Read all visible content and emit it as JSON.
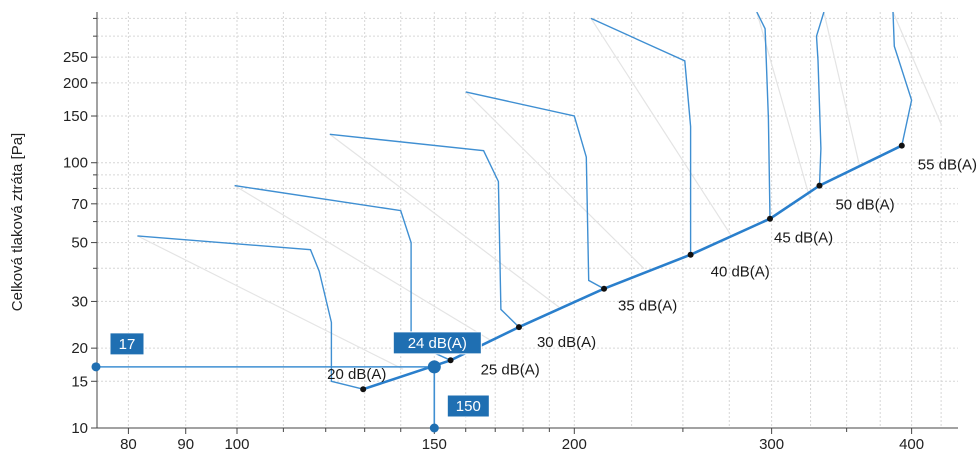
{
  "chart_data": {
    "type": "line",
    "ylabel": "Celková tlaková ztráta [Pa]",
    "xlabel": "",
    "x_scale": "log",
    "y_scale": "log",
    "xlim": [
      75,
      440
    ],
    "ylim": [
      10,
      370
    ],
    "x_ticks": [
      80,
      90,
      100,
      150,
      200,
      300,
      400
    ],
    "y_ticks": [
      10,
      15,
      20,
      30,
      50,
      70,
      100,
      150,
      200,
      250
    ],
    "grid": true,
    "colors": {
      "curve": "#3f8fd2",
      "operating_line": "#2a7fcc",
      "grid": "#d6d6d6",
      "badge": "#1f6fb2",
      "point": "#111111"
    },
    "noise_curves": [
      {
        "label": "20 dB(A)",
        "points": [
          [
            81.5,
            53
          ],
          [
            116.3,
            47
          ],
          [
            118.4,
            39
          ],
          [
            121.4,
            25
          ],
          [
            121.4,
            15
          ],
          [
            129.6,
            14
          ]
        ]
      },
      {
        "label": "25 dB(A)",
        "points": [
          [
            99.5,
            82
          ],
          [
            140,
            66
          ],
          [
            143,
            50
          ],
          [
            143,
            21
          ],
          [
            155.1,
            18
          ]
        ]
      },
      {
        "label": "30 dB(A)",
        "points": [
          [
            121,
            128
          ],
          [
            166,
            111
          ],
          [
            171.1,
            85
          ],
          [
            172,
            28
          ],
          [
            178.5,
            24
          ]
        ]
      },
      {
        "label": "35 dB(A)",
        "points": [
          [
            160,
            185
          ],
          [
            200,
            150
          ],
          [
            205,
            105
          ],
          [
            206,
            36
          ],
          [
            212.6,
            33.5
          ]
        ]
      },
      {
        "label": "40 dB(A)",
        "points": [
          [
            207,
            350
          ],
          [
            251,
            242
          ],
          [
            254,
            137
          ],
          [
            254,
            45
          ]
        ]
      },
      {
        "label": "45 dB(A)",
        "points": [
          [
            291,
            370
          ],
          [
            296,
            320
          ],
          [
            298,
            147
          ],
          [
            299,
            61.5
          ]
        ]
      },
      {
        "label": "50 dB(A)",
        "points": [
          [
            334,
            370
          ],
          [
            329,
            300
          ],
          [
            330,
            243
          ],
          [
            332,
            113
          ],
          [
            331,
            82
          ]
        ]
      },
      {
        "label": "55 dB(A)",
        "points": [
          [
            385,
            370
          ],
          [
            386,
            275
          ],
          [
            400,
            172
          ],
          [
            392,
            116
          ]
        ]
      }
    ],
    "operating_line": [
      [
        129.6,
        14
      ],
      [
        155.1,
        18
      ],
      [
        178.5,
        24
      ],
      [
        212.6,
        33.5
      ],
      [
        254,
        45
      ],
      [
        299,
        61.5
      ],
      [
        331,
        82
      ],
      [
        392,
        116
      ]
    ],
    "db_labels": [
      {
        "text": "20 dB(A)",
        "x": 129.6,
        "y": 14
      },
      {
        "text": "25 dB(A)",
        "x": 155.1,
        "y": 18
      },
      {
        "text": "30 dB(A)",
        "x": 178.5,
        "y": 24
      },
      {
        "text": "35 dB(A)",
        "x": 212.6,
        "y": 33.5
      },
      {
        "text": "40 dB(A)",
        "x": 254,
        "y": 45
      },
      {
        "text": "45 dB(A)",
        "x": 299,
        "y": 61.5
      },
      {
        "text": "50 dB(A)",
        "x": 331,
        "y": 82
      },
      {
        "text": "55 dB(A)",
        "x": 392,
        "y": 116
      }
    ],
    "operating_point": {
      "x": 150,
      "y": 17,
      "label": "24 dB(A)",
      "x_label": "150",
      "y_label": "17"
    }
  }
}
